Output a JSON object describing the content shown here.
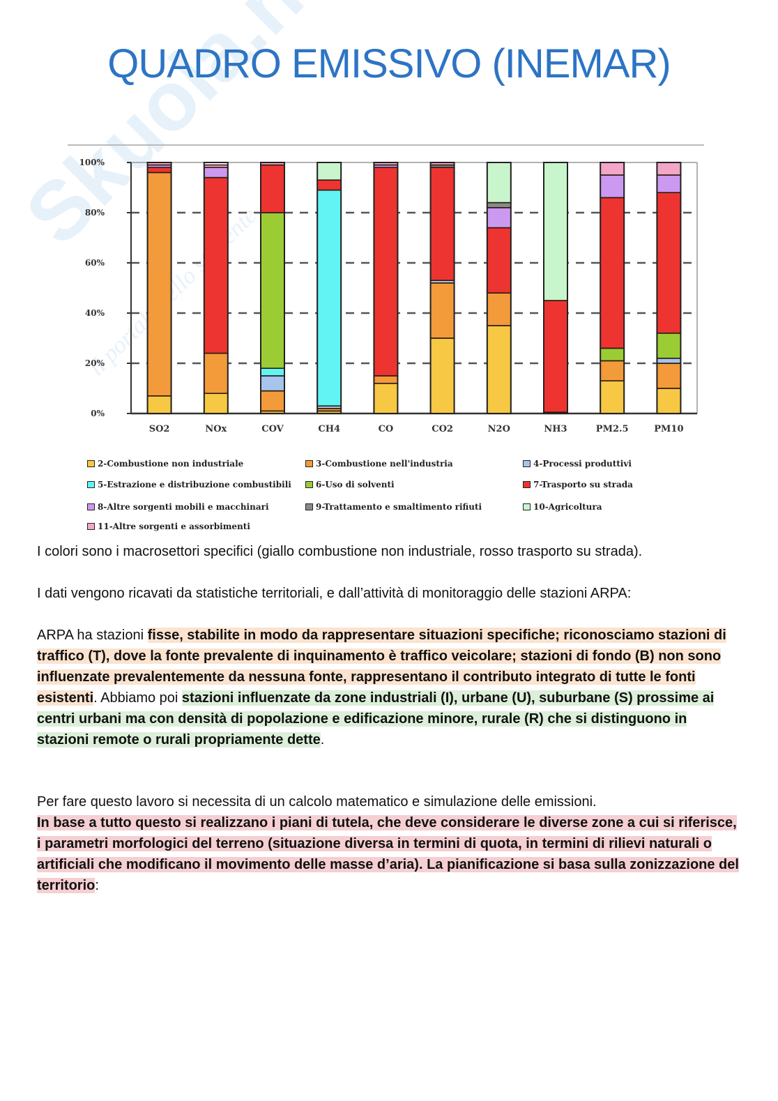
{
  "title": "QUADRO EMISSIVO (INEMAR)",
  "watermark": {
    "logo": "Skuola.net",
    "tagline": "il portale dello studente"
  },
  "colors": {
    "title": "#2d74c4",
    "highlight_orange": "#fbe3cf",
    "highlight_green": "#dcefd9",
    "highlight_red": "#f5cfd2"
  },
  "chart_data": {
    "type": "bar",
    "stacked": true,
    "title": "",
    "xlabel": "",
    "ylabel": "",
    "ylim": [
      0,
      100
    ],
    "yticks": [
      "0%",
      "20%",
      "40%",
      "60%",
      "80%",
      "100%"
    ],
    "grid": "dashed horizontal",
    "legend_position": "bottom",
    "categories": [
      "SO2",
      "NOx",
      "COV",
      "CH4",
      "CO",
      "CO2",
      "N2O",
      "NH3",
      "PM2.5",
      "PM10"
    ],
    "series": [
      {
        "name": "2-Combustione non industriale",
        "color": "#f7c843",
        "values": [
          7,
          8,
          1,
          1,
          12,
          30,
          35,
          0.5,
          13,
          10
        ]
      },
      {
        "name": "3-Combustione nell'industria",
        "color": "#f39a3a",
        "values": [
          89,
          16,
          8,
          1,
          3,
          22,
          13,
          0,
          8,
          10
        ]
      },
      {
        "name": "4-Processi produttivi",
        "color": "#a6c4ec",
        "values": [
          0,
          0,
          6,
          1,
          0,
          1,
          0,
          0,
          0,
          2
        ]
      },
      {
        "name": "5-Estrazione e distribuzione combustibili",
        "color": "#62f4f4",
        "values": [
          0,
          0,
          3,
          86,
          0,
          0,
          0,
          0,
          0,
          0
        ]
      },
      {
        "name": "6-Uso di solventi",
        "color": "#9bcc34",
        "values": [
          0,
          0,
          62,
          0,
          0,
          0,
          0,
          0,
          5,
          10
        ]
      },
      {
        "name": "7-Trasporto su strada",
        "color": "#ee3430",
        "values": [
          2,
          70,
          19,
          4,
          83,
          45,
          26,
          44.5,
          60,
          56
        ]
      },
      {
        "name": "8-Altre sorgenti mobili e macchinari",
        "color": "#cc99f0",
        "values": [
          1,
          4,
          0,
          0,
          1,
          0,
          8,
          0,
          9,
          7
        ]
      },
      {
        "name": "9-Trattamento e smaltimento rifiuti",
        "color": "#8a8a8a",
        "values": [
          0,
          0,
          0,
          0,
          0,
          1,
          2,
          0,
          0,
          0
        ]
      },
      {
        "name": "10-Agricoltura",
        "color": "#c8f5cc",
        "values": [
          0,
          0,
          0,
          7,
          0,
          0,
          16,
          55,
          0,
          0
        ]
      },
      {
        "name": "11-Altre sorgenti e assorbimenti",
        "color": "#f4a6c8",
        "values": [
          1,
          1,
          1,
          0,
          1,
          1,
          0,
          0,
          5,
          5
        ]
      }
    ]
  },
  "paragraphs": {
    "p1": "I colori sono i macrosettori specifici (giallo combustione non industriale, rosso trasporto su strada).",
    "p2": "I dati vengono ricavati da statistiche territoriali, e dall’attività di monitoraggio delle stazioni ARPA:",
    "p3": {
      "a": "ARPA ha stazioni ",
      "b": "fisse, stabilite in modo da rappresentare situazioni specifiche; riconosciamo stazioni di traffico (T), dove la fonte prevalente di inquinamento è traffico veicolare; stazioni di fondo (B) non sono influenzate prevalentemente da nessuna fonte, rappresentano il contributo integrato di tutte le fonti esistenti",
      "c": ". Abbiamo poi ",
      "d": "stazioni influenzate da zone industriali (I), urbane (U), suburbane (S) prossime ai centri urbani ma con densità di popolazione e edificazione minore, rurale (R) che si distinguono in stazioni remote o rurali propriamente dette",
      "e": "."
    },
    "p4": "Per fare questo lavoro si necessita di un calcolo matematico e simulazione delle emissioni.",
    "p5": {
      "a": "In base a tutto questo si realizzano i piani di tutela, che deve considerare le diverse zone a cui si riferisce, i parametri morfologici del terreno (situazione diversa in termini di quota, in termini di rilievi naturali o artificiali che modificano il movimento delle masse d’aria). La pianificazione si basa sulla zonizzazione del territorio",
      "b": ":"
    }
  }
}
